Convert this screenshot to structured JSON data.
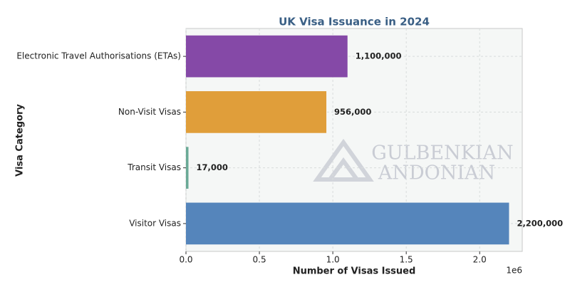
{
  "chart_data": {
    "type": "barh",
    "title": "UK Visa Issuance in 2024",
    "xlabel": "Number of Visas Issued",
    "ylabel": "Visa Category",
    "x_offset_label": "1e6",
    "categories": [
      "Electronic Travel Authorisations (ETAs)",
      "Non-Visit Visas",
      "Transit Visas",
      "Visitor Visas"
    ],
    "values": [
      1100000,
      956000,
      17000,
      2200000
    ],
    "value_labels": [
      "1,100,000",
      "956,000",
      "17,000",
      "2,200,000"
    ],
    "colors": [
      "#8549a7",
      "#e09e3a",
      "#6aaa96",
      "#5585bb"
    ],
    "xlim": [
      0,
      2290000
    ],
    "xticks": [
      {
        "value": 0,
        "label": "0.0"
      },
      {
        "value": 500000,
        "label": "0.5"
      },
      {
        "value": 1000000,
        "label": "1.0"
      },
      {
        "value": 1500000,
        "label": "1.5"
      },
      {
        "value": 2000000,
        "label": "2.0"
      }
    ],
    "grid": true,
    "watermark": [
      "GULBENKIAN",
      "ANDONIAN"
    ]
  }
}
